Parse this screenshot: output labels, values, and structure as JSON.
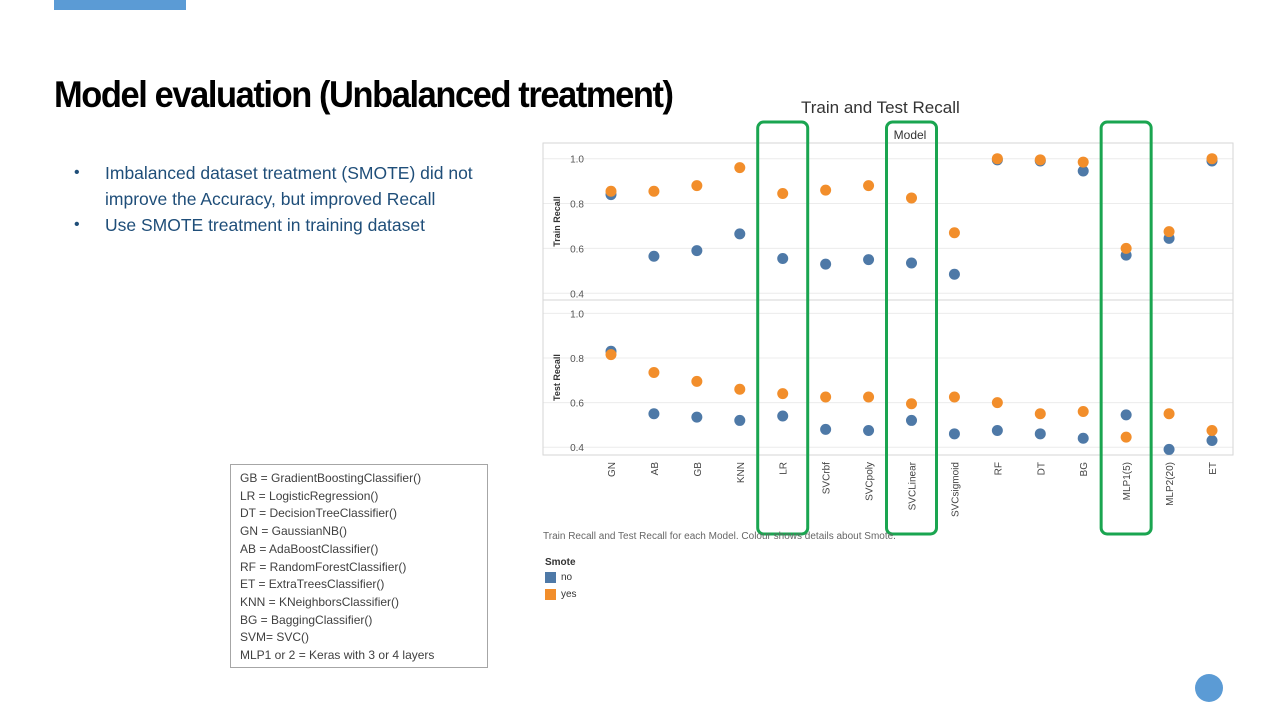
{
  "slide": {
    "title": "Model evaluation (Unbalanced treatment)",
    "bullets": [
      "Imbalanced dataset treatment (SMOTE) did not improve the Accuracy, but improved Recall",
      "Use SMOTE treatment in training dataset"
    ],
    "abbreviations": [
      "GB = GradientBoostingClassifier()",
      "LR = LogisticRegression()",
      "DT = DecisionTreeClassifier()",
      "GN = GaussianNB()",
      "AB = AdaBoostClassifier()",
      "RF = RandomForestClassifier()",
      "ET = ExtraTreesClassifier()",
      "KNN = KNeighborsClassifier()",
      "BG = BaggingClassifier()",
      "SVM= SVC()",
      "MLP1 or 2 = Keras with 3 or 4 layers"
    ],
    "accent_color": "#5b9bd5"
  },
  "chart_data": {
    "type": "scatter",
    "title": "Train and Test Recall",
    "column_header": "Model",
    "caption": "Train Recall and Test Recall for each Model.  Colour shows details about Smote.",
    "categories": [
      "GN",
      "AB",
      "GB",
      "KNN",
      "LR",
      "SVCrbf",
      "SVCpoly",
      "SVCLinear",
      "SVCsigmoid",
      "RF",
      "DT",
      "BG",
      "MLP1(5)",
      "MLP2(20)",
      "ET"
    ],
    "highlighted": [
      "LR",
      "SVCLinear",
      "MLP1(5)"
    ],
    "highlight_color": "#1aa550",
    "legend": {
      "title": "Smote",
      "entries": [
        {
          "name": "no",
          "color": "#4e79a7"
        },
        {
          "name": "yes",
          "color": "#f28e2b"
        }
      ]
    },
    "panels": [
      {
        "ylabel": "Train Recall",
        "ylim": [
          0.37,
          1.07
        ],
        "yticks": [
          "0.4",
          "0.6",
          "0.8",
          "1.0"
        ],
        "series": [
          {
            "name": "no",
            "values": [
              0.84,
              0.565,
              0.59,
              0.665,
              0.555,
              0.53,
              0.55,
              0.535,
              0.485,
              0.995,
              0.99,
              0.945,
              0.57,
              0.645,
              0.99
            ]
          },
          {
            "name": "yes",
            "values": [
              0.855,
              0.855,
              0.88,
              0.96,
              0.845,
              0.86,
              0.88,
              0.825,
              0.67,
              1.0,
              0.995,
              0.985,
              0.6,
              0.675,
              1.0
            ]
          }
        ]
      },
      {
        "ylabel": "Test Recall",
        "ylim": [
          0.365,
          1.06
        ],
        "yticks": [
          "0.4",
          "0.6",
          "0.8",
          "1.0"
        ],
        "series": [
          {
            "name": "no",
            "values": [
              0.83,
              0.55,
              0.535,
              0.52,
              0.54,
              0.48,
              0.475,
              0.52,
              0.46,
              0.475,
              0.46,
              0.44,
              0.545,
              0.39,
              0.43
            ]
          },
          {
            "name": "yes",
            "values": [
              0.815,
              0.735,
              0.695,
              0.66,
              0.64,
              0.625,
              0.625,
              0.595,
              0.625,
              0.6,
              0.55,
              0.56,
              0.445,
              0.55,
              0.475
            ]
          }
        ]
      }
    ]
  }
}
